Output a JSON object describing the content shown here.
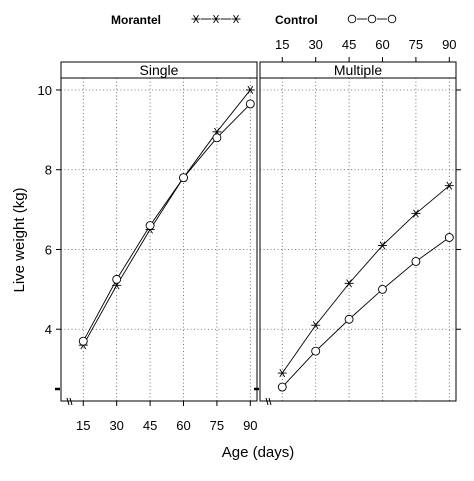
{
  "chart_data": {
    "type": "line",
    "xlabel": "Age (days)",
    "ylabel": "Live weight (kg)",
    "xlim": [
      5,
      93
    ],
    "ylim": [
      2.2,
      10.3
    ],
    "x_ticks": [
      15,
      30,
      45,
      60,
      75,
      90
    ],
    "y_ticks": [
      4,
      6,
      8,
      10
    ],
    "x_tick_labels": [
      "15",
      "30",
      "45",
      "60",
      "75",
      "90"
    ],
    "y_tick_labels": [
      "4",
      "6",
      "8",
      "10"
    ],
    "grid": true,
    "legend": {
      "placement": "top",
      "entries": [
        {
          "name": "Morantel",
          "marker": "star"
        },
        {
          "name": "Control",
          "marker": "circle"
        }
      ]
    },
    "panels": [
      {
        "name": "Single",
        "series": [
          {
            "name": "Morantel",
            "x": [
              15,
              30,
              45,
              60,
              75,
              90
            ],
            "values": [
              3.6,
              5.1,
              6.5,
              7.8,
              8.95,
              10.0
            ]
          },
          {
            "name": "Control",
            "x": [
              15,
              30,
              45,
              60,
              75,
              90
            ],
            "values": [
              3.7,
              5.25,
              6.6,
              7.8,
              8.8,
              9.65
            ]
          }
        ]
      },
      {
        "name": "Multiple",
        "series": [
          {
            "name": "Morantel",
            "x": [
              15,
              30,
              45,
              60,
              75,
              90
            ],
            "values": [
              2.9,
              4.1,
              5.15,
              6.1,
              6.9,
              7.6
            ]
          },
          {
            "name": "Control",
            "x": [
              15,
              30,
              45,
              60,
              75,
              90
            ],
            "values": [
              2.55,
              3.45,
              4.25,
              5.0,
              5.7,
              6.3
            ]
          }
        ]
      }
    ]
  }
}
